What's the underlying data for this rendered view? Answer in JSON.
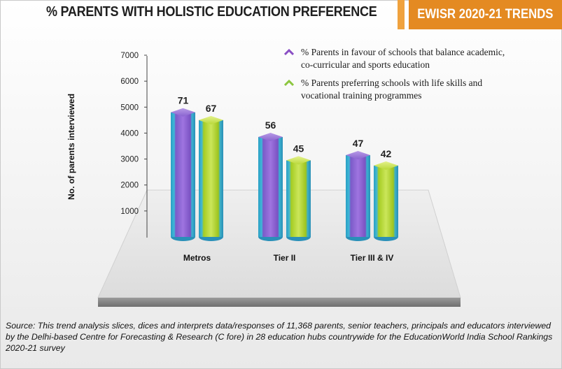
{
  "header": {
    "title": "% PARENTS WITH HOLISTIC EDUCATION PREFERENCE",
    "trend_label": "EWISR 2020-21 TRENDS"
  },
  "colors": {
    "series_1": "#8a4fc4",
    "series_2": "#a9cf2b",
    "accent": "#e48a22",
    "cylinder_base": "#2aa6c9"
  },
  "chart_data": {
    "type": "bar",
    "title": "% PARENTS WITH HOLISTIC EDUCATION PREFERENCE",
    "ylabel": "No. of parents interviewed",
    "xlabel": "",
    "yticks": [
      1000,
      2000,
      3000,
      4000,
      5000,
      6000,
      7000
    ],
    "ylim": [
      0,
      7000
    ],
    "categories": [
      "Metros",
      "Tier II",
      "Tier III & IV"
    ],
    "series": [
      {
        "name": "% Parents in favour of schools that balance academic, co-curricular and sports education",
        "values": [
          4800,
          3850,
          3150
        ],
        "labels": [
          "71",
          "56",
          "47"
        ]
      },
      {
        "name": "% Parents preferring schools with life skills and vocational training programmes",
        "values": [
          4500,
          2950,
          2750
        ],
        "labels": [
          "67",
          "45",
          "42"
        ]
      }
    ],
    "legend": "top-right",
    "grid": false
  },
  "legend_lines": [
    [
      "% Parents in favour of schools that balance academic,",
      "co-curricular and sports education"
    ],
    [
      "% Parents preferring schools with life skills and",
      "vocational training programmes"
    ]
  ],
  "source_text": "Source: This trend analysis slices, dices and interprets data/responses of 11,368 parents, senior teachers, principals and educators interviewed by the Delhi-based Centre for Forecasting & Research (C fore) in 28 education hubs countrywide for the EducationWorld India School Rankings 2020-21 survey"
}
